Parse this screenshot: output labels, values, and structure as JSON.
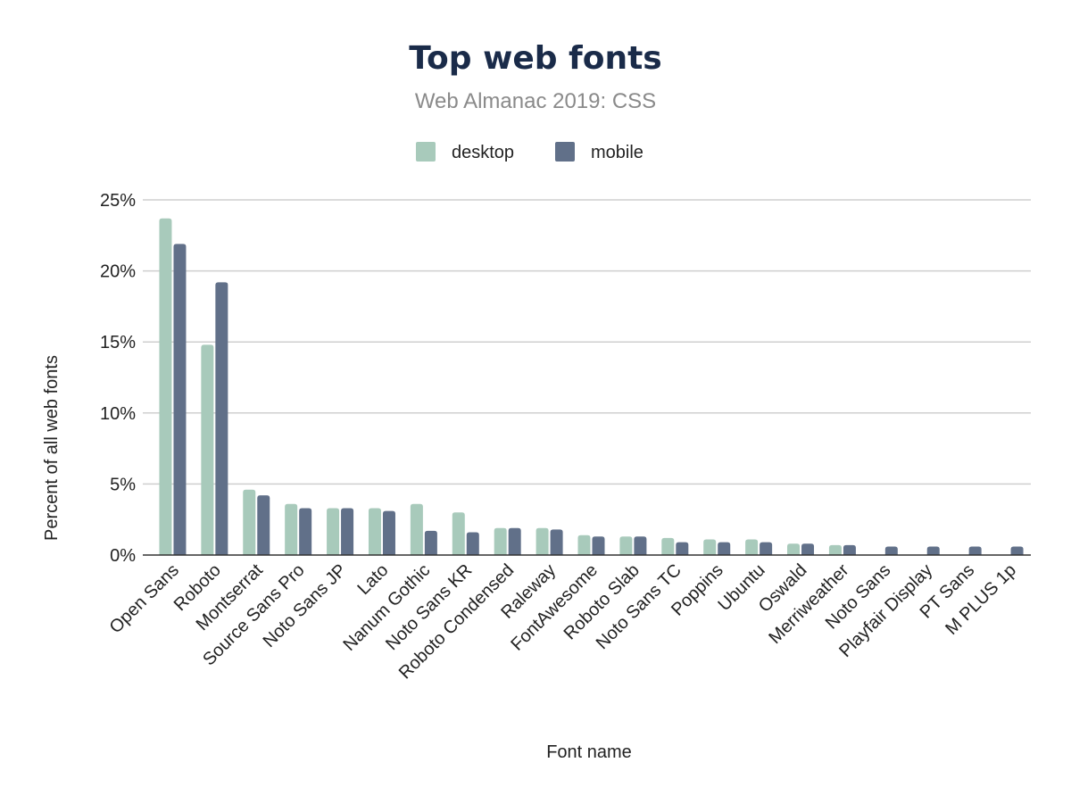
{
  "chart_data": {
    "type": "bar",
    "title": "Top web fonts",
    "subtitle": "Web Almanac 2019: CSS",
    "xlabel": "Font name",
    "ylabel": "Percent of all web fonts",
    "ylim": [
      0,
      25
    ],
    "yticks": [
      "0%",
      "5%",
      "10%",
      "15%",
      "20%",
      "25%"
    ],
    "grid": true,
    "legend_position": "top",
    "categories": [
      "Open Sans",
      "Roboto",
      "Montserrat",
      "Source Sans Pro",
      "Noto Sans JP",
      "Lato",
      "Nanum Gothic",
      "Noto Sans KR",
      "Roboto Condensed",
      "Raleway",
      "FontAwesome",
      "Roboto Slab",
      "Noto Sans TC",
      "Poppins",
      "Ubuntu",
      "Oswald",
      "Merriweather",
      "Noto Sans",
      "Playfair Display",
      "PT Sans",
      "M PLUS 1p"
    ],
    "series": [
      {
        "name": "desktop",
        "color": "#a8cabb",
        "values": [
          23.7,
          14.8,
          4.6,
          3.6,
          3.3,
          3.3,
          3.6,
          3.0,
          1.9,
          1.9,
          1.4,
          1.3,
          1.2,
          1.1,
          1.1,
          0.8,
          0.7,
          0,
          0,
          0,
          0
        ]
      },
      {
        "name": "mobile",
        "color": "#617089",
        "values": [
          21.9,
          19.2,
          4.2,
          3.3,
          3.3,
          3.1,
          1.7,
          1.6,
          1.9,
          1.8,
          1.3,
          1.3,
          0.9,
          0.9,
          0.9,
          0.8,
          0.7,
          0.6,
          0.6,
          0.6,
          0.6
        ]
      }
    ]
  }
}
